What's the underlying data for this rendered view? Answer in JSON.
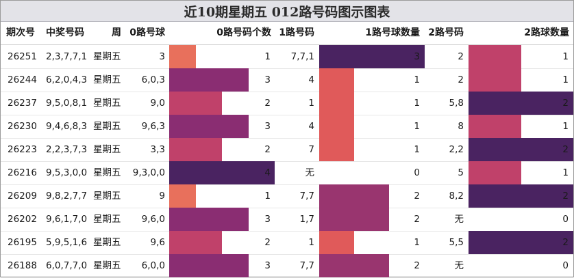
{
  "title": "近10期星期五 012路号码图示图表",
  "headers": {
    "period": "期次号",
    "numbers": "中奖号码",
    "weekday": "周",
    "r0": "0路号球",
    "r0_count": "0路号码个数",
    "r1": "1路号码",
    "r1_count": "1路号球数量",
    "r2": "2路号码",
    "r2_count": "2路球数量"
  },
  "colors": {
    "count1": "#e8705c",
    "count2": "#c0416a",
    "count3": "#8a2d72",
    "count4": "#4a2361",
    "r1_count1": "#e05a5a",
    "r1_count2": "#99356f",
    "r1_count3": "#4a2361"
  },
  "rows": [
    {
      "period": "26251",
      "numbers": "2,3,7,7,1",
      "weekday": "星期五",
      "r0": "3",
      "r0_count": 1,
      "r1": "7,7,1",
      "r1_count": 3,
      "r2": "2",
      "r2_count": 1
    },
    {
      "period": "26244",
      "numbers": "6,2,0,4,3",
      "weekday": "星期五",
      "r0": "6,0,3",
      "r0_count": 3,
      "r1": "4",
      "r1_count": 1,
      "r2": "2",
      "r2_count": 1
    },
    {
      "period": "26237",
      "numbers": "9,5,0,8,1",
      "weekday": "星期五",
      "r0": "9,0",
      "r0_count": 2,
      "r1": "1",
      "r1_count": 1,
      "r2": "5,8",
      "r2_count": 2
    },
    {
      "period": "26230",
      "numbers": "9,4,6,8,3",
      "weekday": "星期五",
      "r0": "9,6,3",
      "r0_count": 3,
      "r1": "4",
      "r1_count": 1,
      "r2": "8",
      "r2_count": 1
    },
    {
      "period": "26223",
      "numbers": "2,2,3,7,3",
      "weekday": "星期五",
      "r0": "3,3",
      "r0_count": 2,
      "r1": "7",
      "r1_count": 1,
      "r2": "2,2",
      "r2_count": 2
    },
    {
      "period": "26216",
      "numbers": "9,5,3,0,0",
      "weekday": "星期五",
      "r0": "9,3,0,0",
      "r0_count": 4,
      "r1": "无",
      "r1_count": 0,
      "r2": "5",
      "r2_count": 1
    },
    {
      "period": "26209",
      "numbers": "9,8,2,7,7",
      "weekday": "星期五",
      "r0": "9",
      "r0_count": 1,
      "r1": "7,7",
      "r1_count": 2,
      "r2": "8,2",
      "r2_count": 2
    },
    {
      "period": "26202",
      "numbers": "9,6,1,7,0",
      "weekday": "星期五",
      "r0": "9,6,0",
      "r0_count": 3,
      "r1": "1,7",
      "r1_count": 2,
      "r2": "无",
      "r2_count": 0
    },
    {
      "period": "26195",
      "numbers": "5,9,5,1,6",
      "weekday": "星期五",
      "r0": "9,6",
      "r0_count": 2,
      "r1": "1",
      "r1_count": 1,
      "r2": "5,5",
      "r2_count": 2
    },
    {
      "period": "26188",
      "numbers": "6,0,7,7,0",
      "weekday": "星期五",
      "r0": "6,0,0",
      "r0_count": 3,
      "r1": "7,7",
      "r1_count": 2,
      "r2": "无",
      "r2_count": 0
    }
  ]
}
